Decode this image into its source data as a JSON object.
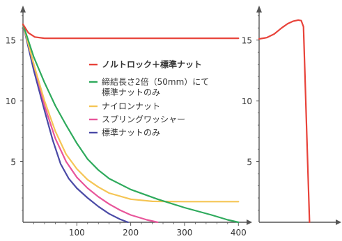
{
  "chart_data": [
    {
      "type": "line",
      "title": "",
      "xlabel": "",
      "ylabel": "",
      "xlim": [
        0,
        410
      ],
      "ylim": [
        0,
        17.5
      ],
      "x_ticks": [
        100,
        200,
        300,
        400
      ],
      "x_tick_labels": [
        "100",
        "200",
        "300",
        "400"
      ],
      "y_ticks": [
        5,
        10,
        15
      ],
      "y_tick_labels": [
        "5",
        "10",
        "15"
      ],
      "grid": false,
      "legend_position": "center",
      "series": [
        {
          "name": "ノルトロック＋標準ナット",
          "color": "#e8433a",
          "legend_bold": true,
          "points": [
            [
              0,
              16.3
            ],
            [
              10,
              15.6
            ],
            [
              22,
              15.25
            ],
            [
              40,
              15.15
            ],
            [
              80,
              15.15
            ],
            [
              200,
              15.15
            ],
            [
              300,
              15.15
            ],
            [
              400,
              15.15
            ]
          ]
        },
        {
          "name": "締結長さ2倍（50mm）にて標準ナットのみ",
          "legend_lines": [
            "締結長さ2倍（50mm）にて",
            "標準ナットのみ"
          ],
          "color": "#2eaa5c",
          "points": [
            [
              0,
              16.3
            ],
            [
              20,
              13.6
            ],
            [
              40,
              11.5
            ],
            [
              60,
              9.6
            ],
            [
              80,
              8.0
            ],
            [
              100,
              6.5
            ],
            [
              120,
              5.2
            ],
            [
              140,
              4.3
            ],
            [
              160,
              3.6
            ],
            [
              200,
              2.7
            ],
            [
              250,
              1.9
            ],
            [
              300,
              1.2
            ],
            [
              350,
              0.6
            ],
            [
              380,
              0.2
            ],
            [
              400,
              0.0
            ]
          ]
        },
        {
          "name": "ナイロンナット",
          "color": "#f5c555",
          "points": [
            [
              0,
              16.3
            ],
            [
              20,
              13.0
            ],
            [
              40,
              10.0
            ],
            [
              60,
              7.5
            ],
            [
              80,
              5.6
            ],
            [
              100,
              4.4
            ],
            [
              120,
              3.5
            ],
            [
              140,
              2.9
            ],
            [
              160,
              2.4
            ],
            [
              200,
              1.9
            ],
            [
              240,
              1.72
            ],
            [
              300,
              1.7
            ],
            [
              360,
              1.7
            ],
            [
              400,
              1.7
            ]
          ]
        },
        {
          "name": "スプリングワッシャー",
          "color": "#e8559a",
          "points": [
            [
              0,
              16.3
            ],
            [
              20,
              13.0
            ],
            [
              40,
              9.6
            ],
            [
              60,
              6.9
            ],
            [
              80,
              5.0
            ],
            [
              100,
              3.7
            ],
            [
              120,
              2.8
            ],
            [
              140,
              2.1
            ],
            [
              160,
              1.5
            ],
            [
              180,
              1.0
            ],
            [
              200,
              0.6
            ],
            [
              230,
              0.2
            ],
            [
              250,
              0.0
            ]
          ]
        },
        {
          "name": "標準ナットのみ",
          "color": "#4a4aa6",
          "points": [
            [
              0,
              16.3
            ],
            [
              20,
              12.5
            ],
            [
              40,
              9.2
            ],
            [
              55,
              6.8
            ],
            [
              70,
              4.8
            ],
            [
              85,
              3.6
            ],
            [
              100,
              2.8
            ],
            [
              120,
              2.0
            ],
            [
              140,
              1.3
            ],
            [
              160,
              0.7
            ],
            [
              180,
              0.25
            ],
            [
              195,
              0.0
            ]
          ]
        }
      ]
    },
    {
      "type": "line",
      "title": "",
      "xlabel": "",
      "ylabel": "",
      "xlim": [
        0,
        1
      ],
      "ylim": [
        0,
        17.5
      ],
      "x_ticks": [],
      "x_tick_labels": [],
      "y_ticks": [
        5,
        10,
        15
      ],
      "y_tick_labels": [
        "5",
        "10",
        "15"
      ],
      "grid": false,
      "series": [
        {
          "name": "",
          "color": "#e8433a",
          "points": [
            [
              0,
              15.1
            ],
            [
              0.1,
              15.2
            ],
            [
              0.2,
              15.5
            ],
            [
              0.3,
              16.0
            ],
            [
              0.38,
              16.35
            ],
            [
              0.45,
              16.55
            ],
            [
              0.52,
              16.65
            ],
            [
              0.56,
              16.6
            ],
            [
              0.59,
              16.1
            ],
            [
              0.61,
              12.0
            ],
            [
              0.64,
              6.0
            ],
            [
              0.67,
              0.0
            ]
          ]
        }
      ]
    }
  ]
}
